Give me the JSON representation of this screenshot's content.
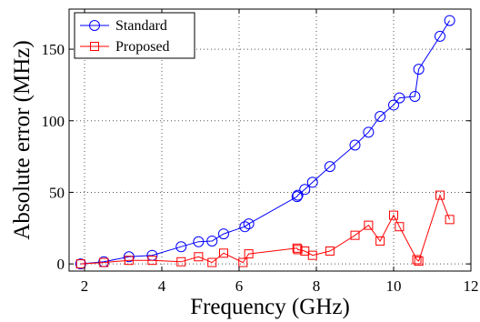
{
  "chart_data": {
    "type": "line",
    "xlabel": "Frequency (GHz)",
    "ylabel": "Absolute error (MHz)",
    "xlim": [
      1.6,
      12
    ],
    "ylim": [
      -5,
      178
    ],
    "xticks": [
      2,
      4,
      6,
      8,
      10,
      12
    ],
    "yticks": [
      0,
      50,
      100,
      150
    ],
    "grid": true,
    "legend_position": "top-left",
    "series": [
      {
        "name": "Standard",
        "color": "#0000ff",
        "marker": "circle",
        "x": [
          1.9,
          2.5,
          3.15,
          3.75,
          4.5,
          4.95,
          5.3,
          5.6,
          6.15,
          6.25,
          7.5,
          7.52,
          7.7,
          7.9,
          8.35,
          9.0,
          9.35,
          9.65,
          10.0,
          10.15,
          10.55,
          10.65,
          11.2,
          11.45
        ],
        "y": [
          0,
          1.5,
          5,
          6,
          12,
          15.5,
          16,
          21,
          26,
          28,
          47,
          48,
          52,
          57,
          68,
          83,
          92,
          103,
          111,
          116,
          117,
          136,
          159,
          170
        ]
      },
      {
        "name": "Proposed",
        "color": "#ff0000",
        "marker": "square",
        "x": [
          1.9,
          2.5,
          3.15,
          3.75,
          4.5,
          4.95,
          5.3,
          5.6,
          6.1,
          6.25,
          7.5,
          7.52,
          7.7,
          7.9,
          8.35,
          9.0,
          9.35,
          9.65,
          10.0,
          10.15,
          10.6,
          10.65,
          11.2,
          11.45
        ],
        "y": [
          0,
          1,
          2.5,
          2.5,
          1.5,
          5,
          1,
          7.5,
          1,
          7,
          11,
          10,
          9,
          6,
          9,
          20,
          27,
          16,
          34,
          26,
          3,
          2,
          48,
          31
        ]
      }
    ]
  }
}
